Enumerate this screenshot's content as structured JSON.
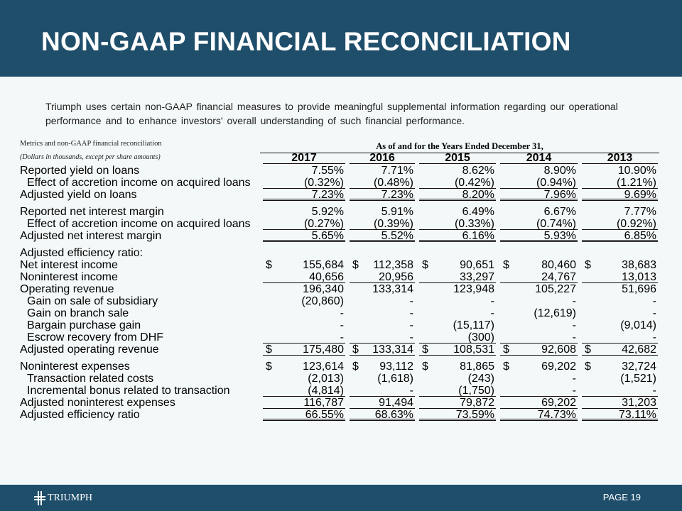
{
  "title": "NON-GAAP FINANCIAL RECONCILIATION",
  "intro": "Triumph uses certain non-GAAP financial measures to provide meaningful supplemental information regarding our operational performance and to enhance investors' overall understanding of such financial performance.",
  "table": {
    "caption": "Metrics and non-GAAP financial reconciliation",
    "span_header": "As of and for the Years Ended December 31,",
    "units": "(Dollars in thousands, except per share amounts)",
    "years": [
      "2017",
      "2016",
      "2015",
      "2014",
      "2013"
    ],
    "rows": [
      {
        "label": "Reported yield on loans",
        "indent": false,
        "line": "none",
        "dollar": false,
        "values": [
          "7.55%",
          "7.71%",
          "8.62%",
          "8.90%",
          "10.90%"
        ]
      },
      {
        "label": "Effect of accretion income on acquired loans",
        "indent": true,
        "line": "single",
        "dollar": false,
        "values": [
          "(0.32%)",
          "(0.48%)",
          "(0.42%)",
          "(0.94%)",
          "(1.21%)"
        ]
      },
      {
        "label": "Adjusted yield on loans",
        "indent": false,
        "line": "double",
        "dollar": false,
        "values": [
          "7.23%",
          "7.23%",
          "8.20%",
          "7.96%",
          "9.69%"
        ]
      },
      {
        "label": "Reported net interest margin",
        "indent": false,
        "line": "none",
        "dollar": false,
        "values": [
          "5.92%",
          "5.91%",
          "6.49%",
          "6.67%",
          "7.77%"
        ],
        "gap": true
      },
      {
        "label": "Effect of accretion income on acquired loans",
        "indent": true,
        "line": "single",
        "dollar": false,
        "values": [
          "(0.27%)",
          "(0.39%)",
          "(0.33%)",
          "(0.74%)",
          "(0.92%)"
        ]
      },
      {
        "label": "Adjusted net interest margin",
        "indent": false,
        "line": "double",
        "dollar": false,
        "values": [
          "5.65%",
          "5.52%",
          "6.16%",
          "5.93%",
          "6.85%"
        ]
      },
      {
        "label": "Adjusted efficiency ratio:",
        "indent": false,
        "line": "none",
        "dollar": false,
        "values": [
          "",
          "",
          "",
          "",
          ""
        ],
        "gap": true
      },
      {
        "label": "Net interest income",
        "indent": false,
        "line": "none",
        "dollar": true,
        "values": [
          "155,684",
          "112,358",
          "90,651",
          "80,460",
          "38,683"
        ]
      },
      {
        "label": "Noninterest income",
        "indent": false,
        "line": "single",
        "dollar": false,
        "values": [
          "40,656",
          "20,956",
          "33,297",
          "24,767",
          "13,013"
        ]
      },
      {
        "label": "Operating revenue",
        "indent": false,
        "line": "none",
        "dollar": false,
        "values": [
          "196,340",
          "133,314",
          "123,948",
          "105,227",
          "51,696"
        ]
      },
      {
        "label": "Gain on sale of subsidiary",
        "indent": true,
        "line": "none",
        "dollar": false,
        "values": [
          "(20,860)",
          "-",
          "-",
          "-",
          "-"
        ]
      },
      {
        "label": "Gain on branch sale",
        "indent": true,
        "line": "none",
        "dollar": false,
        "values": [
          "-",
          "-",
          "-",
          "(12,619)",
          "-"
        ]
      },
      {
        "label": "Bargain purchase gain",
        "indent": true,
        "line": "none",
        "dollar": false,
        "values": [
          "-",
          "-",
          "(15,117)",
          "-",
          "(9,014)"
        ]
      },
      {
        "label": "Escrow recovery from DHF",
        "indent": true,
        "line": "single",
        "dollar": false,
        "values": [
          "-",
          "-",
          "(300)",
          "-",
          "-"
        ]
      },
      {
        "label": "Adjusted operating revenue",
        "indent": false,
        "line": "single",
        "dollar": true,
        "values": [
          "175,480",
          "133,314",
          "108,531",
          "92,608",
          "42,682"
        ]
      },
      {
        "label": "Noninterest expenses",
        "indent": false,
        "line": "none",
        "dollar": true,
        "values": [
          "123,614",
          "93,112",
          "81,865",
          "69,202",
          "32,724"
        ],
        "gap": true
      },
      {
        "label": "Transaction related costs",
        "indent": true,
        "line": "none",
        "dollar": false,
        "values": [
          "(2,013)",
          "(1,618)",
          "(243)",
          "-",
          "(1,521)"
        ]
      },
      {
        "label": "Incremental bonus related to transaction",
        "indent": true,
        "line": "single",
        "dollar": false,
        "values": [
          "(4,814)",
          "-",
          "(1,750)",
          "-",
          "-"
        ]
      },
      {
        "label": "Adjusted noninterest expenses",
        "indent": false,
        "line": "single",
        "dollar": false,
        "values": [
          "116,787",
          "91,494",
          "79,872",
          "69,202",
          "31,203"
        ]
      },
      {
        "label": "Adjusted efficiency ratio",
        "indent": false,
        "line": "double",
        "dollar": false,
        "values": [
          "66.55%",
          "68.63%",
          "73.59%",
          "74.73%",
          "73.11%"
        ]
      }
    ]
  },
  "dollar_sign": "$",
  "footer": {
    "logo": "TRIUMPH",
    "page": "PAGE 19"
  }
}
